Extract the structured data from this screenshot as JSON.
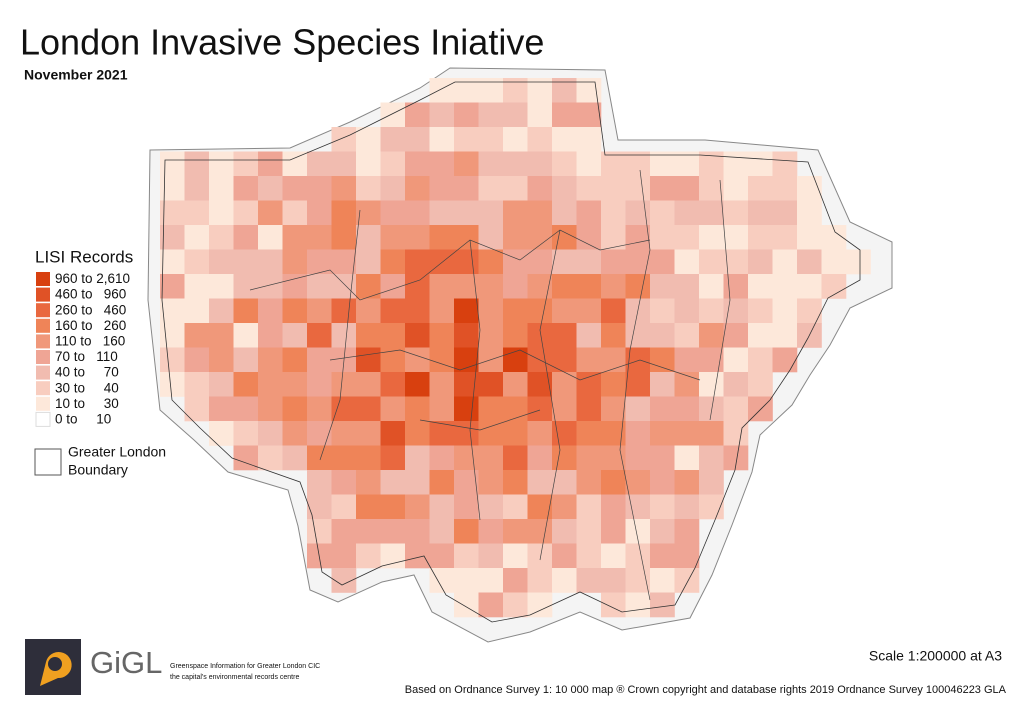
{
  "header": {
    "title": "London Invasive Species Iniative",
    "subtitle": "November 2021"
  },
  "legend": {
    "title": "LISI Records",
    "items": [
      {
        "label": "960 to 2,610",
        "color": "#d8400f"
      },
      {
        "label": "460 to   960",
        "color": "#e05226"
      },
      {
        "label": "260 to   460",
        "color": "#e9683f"
      },
      {
        "label": "160 to   260",
        "color": "#ef8458"
      },
      {
        "label": "110 to   160",
        "color": "#f0987a"
      },
      {
        "label": "70 to   110",
        "color": "#efa595"
      },
      {
        "label": "40 to     70",
        "color": "#f1bcb0"
      },
      {
        "label": "30 to     40",
        "color": "#f8cdbf"
      },
      {
        "label": "10 to     30",
        "color": "#fde8da"
      },
      {
        "label": "0 to     10",
        "color": "#ffffff"
      }
    ],
    "boundary": [
      "Greater London",
      "Boundary"
    ]
  },
  "footer": {
    "scale": "Scale 1:200000 at A3",
    "credits": "Based on Ordnance Survey 1: 10 000 map ® Crown copyright and database rights 2019 Ordnance Survey 100046223 GLA",
    "logo": "GiGL",
    "org": [
      "Greenspace Information for Greater London CIC",
      "the capital's environmental records centre"
    ]
  }
}
